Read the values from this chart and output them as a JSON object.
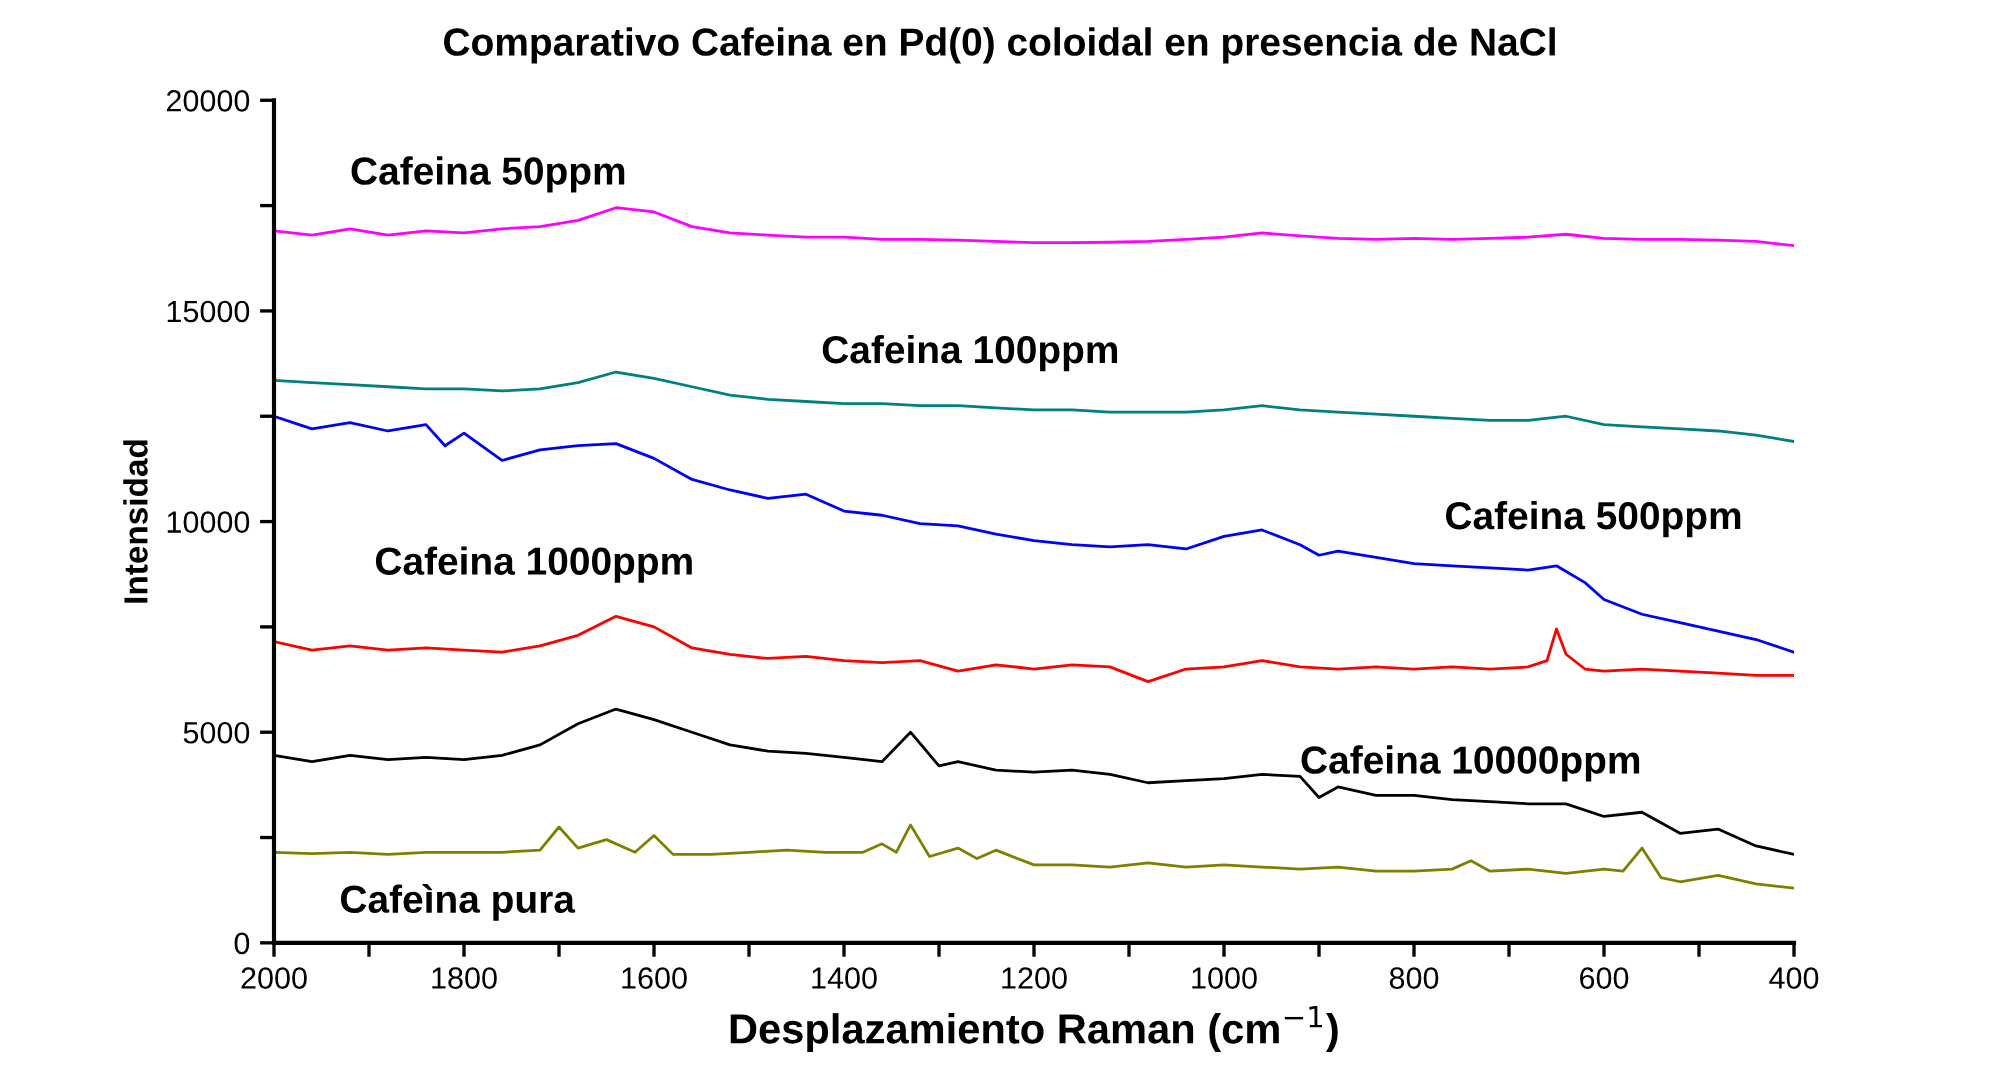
{
  "chart_data": {
    "type": "line",
    "title": "Comparativo Cafeina en Pd(0) coloidal en presencia de NaCl",
    "xlabel": "Desplazamiento Raman (cm$^{−1}$)",
    "ylabel": "Intensidad",
    "xlim": [
      2000,
      400
    ],
    "ylim": [
      0,
      20000
    ],
    "xticks": [
      2000,
      {
        "value": 1900,
        "label": null
      },
      1800,
      {
        "value": 1700,
        "label": null
      },
      1600,
      {
        "value": 1500,
        "label": null
      },
      1400,
      {
        "value": 1300,
        "label": null
      },
      1200,
      {
        "value": 1100,
        "label": null
      },
      1000,
      {
        "value": 900,
        "label": null
      },
      800,
      {
        "value": 700,
        "label": null
      },
      600,
      {
        "value": 500,
        "label": null
      },
      400
    ],
    "yticks": [
      0,
      {
        "value": 2500,
        "label": null
      },
      5000,
      {
        "value": 7500,
        "label": null
      },
      10000,
      {
        "value": 12500,
        "label": null
      },
      15000,
      {
        "value": 17500,
        "label": null
      },
      20000
    ],
    "grid": false,
    "marker": "none",
    "line_style": "solid",
    "series": [
      {
        "name": "Cafeina 50ppm",
        "color": "#ff00ff",
        "x": [
          2000,
          1960,
          1920,
          1880,
          1840,
          1800,
          1760,
          1720,
          1680,
          1640,
          1600,
          1560,
          1520,
          1480,
          1440,
          1400,
          1360,
          1320,
          1280,
          1240,
          1200,
          1160,
          1120,
          1080,
          1040,
          1000,
          960,
          920,
          880,
          840,
          800,
          760,
          720,
          680,
          640,
          600,
          560,
          520,
          480,
          440,
          400
        ],
        "values": [
          16900,
          16800,
          16950,
          16800,
          16900,
          16850,
          16950,
          17000,
          17150,
          17450,
          17350,
          17000,
          16850,
          16800,
          16750,
          16750,
          16700,
          16700,
          16680,
          16650,
          16620,
          16620,
          16630,
          16650,
          16700,
          16750,
          16850,
          16780,
          16720,
          16700,
          16720,
          16700,
          16720,
          16750,
          16820,
          16720,
          16700,
          16700,
          16680,
          16650,
          16550
        ]
      },
      {
        "name": "Cafeina 100ppm",
        "color": "#008080",
        "x": [
          2000,
          1960,
          1920,
          1880,
          1840,
          1800,
          1760,
          1720,
          1680,
          1640,
          1600,
          1560,
          1520,
          1480,
          1440,
          1400,
          1360,
          1320,
          1280,
          1240,
          1200,
          1160,
          1120,
          1080,
          1040,
          1000,
          960,
          920,
          880,
          840,
          800,
          760,
          720,
          680,
          640,
          600,
          560,
          520,
          480,
          440,
          400
        ],
        "values": [
          13350,
          13300,
          13250,
          13200,
          13150,
          13150,
          13100,
          13150,
          13300,
          13550,
          13400,
          13200,
          13000,
          12900,
          12850,
          12800,
          12800,
          12750,
          12750,
          12700,
          12650,
          12650,
          12600,
          12600,
          12600,
          12650,
          12750,
          12650,
          12600,
          12550,
          12500,
          12450,
          12400,
          12400,
          12500,
          12300,
          12250,
          12200,
          12150,
          12050,
          11900
        ]
      },
      {
        "name": "Cafeina 500ppm",
        "color": "#0000ff",
        "x": [
          2000,
          1960,
          1920,
          1880,
          1840,
          1820,
          1800,
          1760,
          1720,
          1680,
          1640,
          1600,
          1560,
          1520,
          1480,
          1440,
          1400,
          1360,
          1320,
          1280,
          1240,
          1200,
          1160,
          1120,
          1080,
          1040,
          1000,
          960,
          920,
          900,
          880,
          840,
          800,
          760,
          720,
          680,
          650,
          620,
          600,
          560,
          520,
          480,
          440,
          400
        ],
        "values": [
          12500,
          12200,
          12350,
          12150,
          12300,
          11800,
          12100,
          11450,
          11700,
          11800,
          11850,
          11500,
          11000,
          10750,
          10550,
          10650,
          10250,
          10150,
          9950,
          9900,
          9700,
          9550,
          9450,
          9400,
          9450,
          9350,
          9650,
          9800,
          9450,
          9200,
          9300,
          9150,
          9000,
          8950,
          8900,
          8850,
          8950,
          8550,
          8150,
          7800,
          7600,
          7400,
          7200,
          6900
        ]
      },
      {
        "name": "Cafeina 1000ppm",
        "color": "#ff0000",
        "x": [
          2000,
          1960,
          1920,
          1880,
          1840,
          1800,
          1760,
          1720,
          1680,
          1640,
          1600,
          1560,
          1520,
          1480,
          1440,
          1400,
          1360,
          1320,
          1280,
          1240,
          1200,
          1160,
          1120,
          1080,
          1040,
          1000,
          960,
          920,
          880,
          840,
          800,
          760,
          720,
          680,
          660,
          650,
          640,
          620,
          600,
          560,
          520,
          480,
          440,
          400
        ],
        "values": [
          7150,
          6950,
          7050,
          6950,
          7000,
          6950,
          6900,
          7050,
          7300,
          7750,
          7500,
          7000,
          6850,
          6750,
          6800,
          6700,
          6650,
          6700,
          6450,
          6600,
          6500,
          6600,
          6550,
          6200,
          6500,
          6550,
          6700,
          6550,
          6500,
          6550,
          6500,
          6550,
          6500,
          6550,
          6700,
          7450,
          6850,
          6500,
          6450,
          6500,
          6450,
          6400,
          6350,
          6350
        ]
      },
      {
        "name": "Cafeina 10000ppm",
        "color": "#000000",
        "x": [
          2000,
          1960,
          1920,
          1880,
          1840,
          1800,
          1760,
          1720,
          1680,
          1640,
          1600,
          1560,
          1520,
          1480,
          1440,
          1400,
          1360,
          1330,
          1300,
          1280,
          1240,
          1200,
          1160,
          1120,
          1080,
          1040,
          1000,
          960,
          920,
          900,
          880,
          840,
          800,
          760,
          720,
          680,
          640,
          600,
          560,
          520,
          480,
          440,
          400
        ],
        "values": [
          4450,
          4300,
          4450,
          4350,
          4400,
          4350,
          4450,
          4700,
          5200,
          5550,
          5300,
          5000,
          4700,
          4550,
          4500,
          4400,
          4300,
          5000,
          4200,
          4300,
          4100,
          4050,
          4100,
          4000,
          3800,
          3850,
          3900,
          4000,
          3950,
          3450,
          3700,
          3500,
          3500,
          3400,
          3350,
          3300,
          3300,
          3000,
          3100,
          2600,
          2700,
          2300,
          2100
        ]
      },
      {
        "name": "Cafeìna pura",
        "color": "#808000",
        "x": [
          2000,
          1960,
          1920,
          1880,
          1840,
          1800,
          1760,
          1720,
          1700,
          1680,
          1650,
          1620,
          1600,
          1580,
          1540,
          1500,
          1460,
          1420,
          1380,
          1360,
          1345,
          1330,
          1310,
          1280,
          1260,
          1240,
          1200,
          1160,
          1120,
          1080,
          1040,
          1000,
          960,
          920,
          880,
          840,
          800,
          760,
          740,
          720,
          680,
          640,
          600,
          580,
          560,
          540,
          520,
          480,
          440,
          400
        ],
        "values": [
          2150,
          2120,
          2150,
          2100,
          2150,
          2150,
          2150,
          2200,
          2750,
          2250,
          2450,
          2150,
          2550,
          2100,
          2100,
          2150,
          2200,
          2150,
          2150,
          2350,
          2150,
          2800,
          2050,
          2250,
          2000,
          2200,
          1850,
          1850,
          1800,
          1900,
          1800,
          1850,
          1800,
          1750,
          1800,
          1700,
          1700,
          1750,
          1950,
          1700,
          1750,
          1650,
          1750,
          1700,
          2250,
          1550,
          1450,
          1600,
          1400,
          1300
        ]
      }
    ]
  }
}
